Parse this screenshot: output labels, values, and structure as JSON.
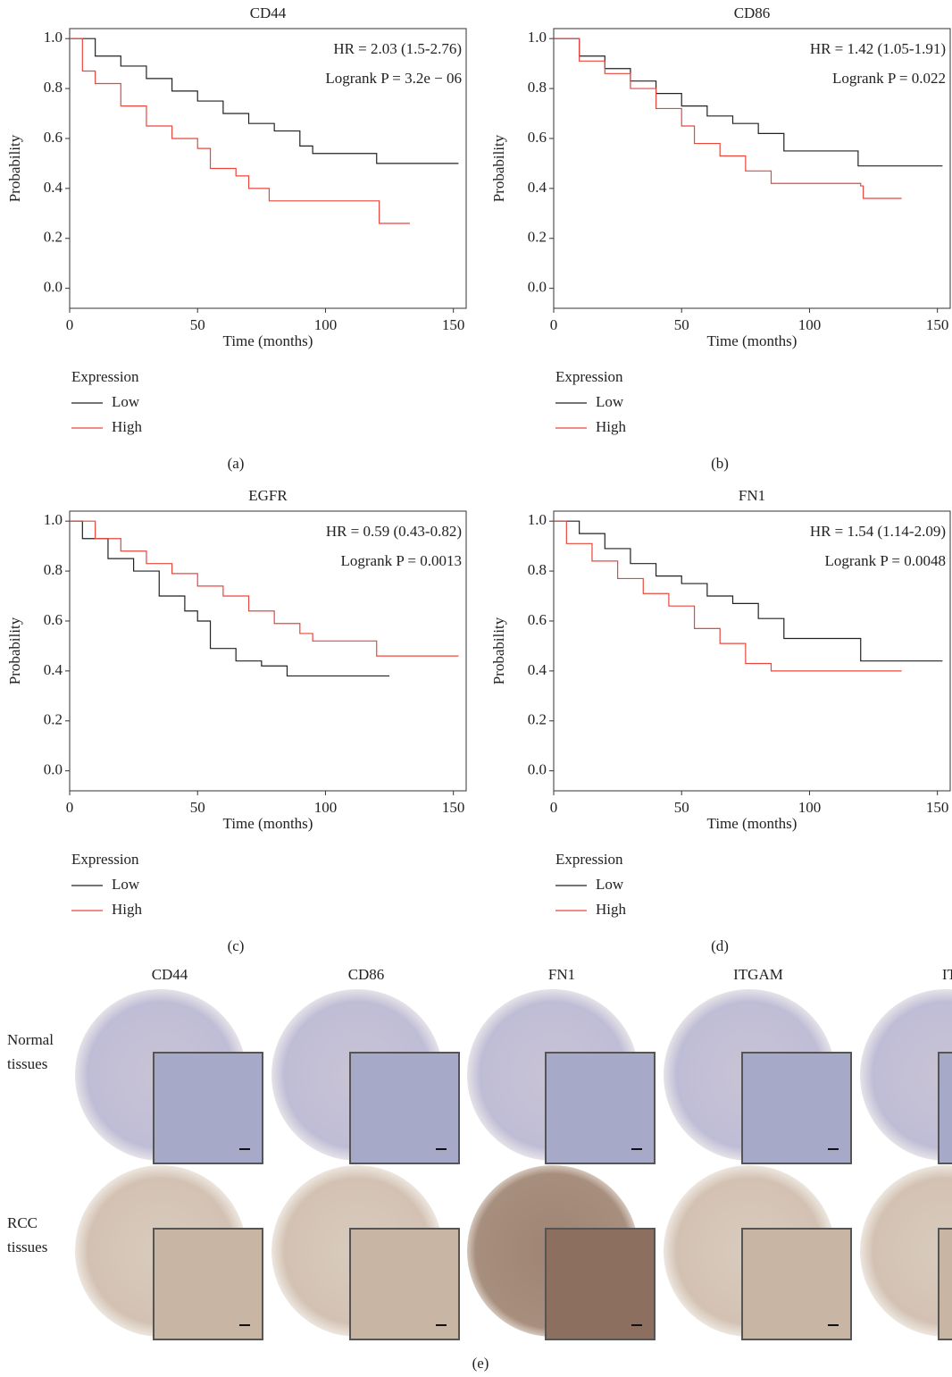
{
  "chart_data": [
    {
      "type": "line",
      "title": "CD44",
      "xlabel": "Time (months)",
      "ylabel": "Probability",
      "annotations": [
        "HR = 2.03 (1.5-2.76)",
        "Logrank P = 3.2e − 06"
      ],
      "legend_title": "Expression",
      "panel_label": "(a)",
      "xlim": [
        0,
        155
      ],
      "xticks": [
        0,
        50,
        100,
        150
      ],
      "ylim": [
        -0.08,
        1.04
      ],
      "yticks": [
        {
          "value": 0,
          "label": "0.0"
        },
        0.2,
        0.4,
        0.6,
        0.8,
        {
          "value": 1,
          "label": "1.0"
        }
      ],
      "series": [
        {
          "name": "Low",
          "color": "#222222",
          "x": [
            0,
            10,
            20,
            30,
            40,
            50,
            60,
            70,
            80,
            90,
            95,
            120,
            152
          ],
          "values": [
            1.0,
            0.93,
            0.89,
            0.84,
            0.79,
            0.75,
            0.7,
            0.66,
            0.63,
            0.57,
            0.54,
            0.5,
            0.5
          ]
        },
        {
          "name": "High",
          "color": "#e8473c",
          "x": [
            0,
            5,
            10,
            20,
            30,
            40,
            50,
            55,
            65,
            70,
            78,
            120,
            121,
            133
          ],
          "values": [
            1.0,
            0.87,
            0.82,
            0.73,
            0.65,
            0.6,
            0.56,
            0.48,
            0.45,
            0.4,
            0.35,
            0.35,
            0.26,
            0.26
          ]
        }
      ]
    },
    {
      "type": "line",
      "title": "CD86",
      "xlabel": "Time (months)",
      "ylabel": "Probability",
      "annotations": [
        "HR = 1.42 (1.05-1.91)",
        "Logrank P = 0.022"
      ],
      "legend_title": "Expression",
      "panel_label": "(b)",
      "xlim": [
        0,
        155
      ],
      "xticks": [
        0,
        50,
        100,
        150
      ],
      "ylim": [
        -0.08,
        1.04
      ],
      "yticks": [
        {
          "value": 0,
          "label": "0.0"
        },
        0.2,
        0.4,
        0.6,
        0.8,
        {
          "value": 1,
          "label": "1.0"
        }
      ],
      "series": [
        {
          "name": "Low",
          "color": "#222222",
          "x": [
            0,
            10,
            20,
            30,
            40,
            50,
            60,
            70,
            80,
            90,
            118,
            119,
            152
          ],
          "values": [
            1.0,
            0.93,
            0.88,
            0.83,
            0.78,
            0.73,
            0.69,
            0.66,
            0.62,
            0.55,
            0.55,
            0.49,
            0.49
          ]
        },
        {
          "name": "High",
          "color": "#e8473c",
          "x": [
            0,
            10,
            20,
            30,
            40,
            50,
            55,
            65,
            75,
            85,
            120,
            121,
            136
          ],
          "values": [
            1.0,
            0.91,
            0.86,
            0.8,
            0.72,
            0.65,
            0.58,
            0.53,
            0.47,
            0.42,
            0.41,
            0.36,
            0.36
          ]
        }
      ]
    },
    {
      "type": "line",
      "title": "EGFR",
      "xlabel": "Time (months)",
      "ylabel": "Probability",
      "annotations": [
        "HR = 0.59 (0.43-0.82)",
        "Logrank P = 0.0013"
      ],
      "legend_title": "Expression",
      "panel_label": "(c)",
      "xlim": [
        0,
        155
      ],
      "xticks": [
        0,
        50,
        100,
        150
      ],
      "ylim": [
        -0.08,
        1.04
      ],
      "yticks": [
        {
          "value": 0,
          "label": "0.0"
        },
        0.2,
        0.4,
        0.6,
        0.8,
        {
          "value": 1,
          "label": "1.0"
        }
      ],
      "series": [
        {
          "name": "Low",
          "color": "#222222",
          "x": [
            0,
            5,
            15,
            25,
            35,
            45,
            50,
            55,
            65,
            75,
            85,
            125
          ],
          "values": [
            1.0,
            0.93,
            0.85,
            0.8,
            0.7,
            0.64,
            0.6,
            0.49,
            0.44,
            0.42,
            0.38,
            0.38
          ]
        },
        {
          "name": "High",
          "color": "#e8473c",
          "x": [
            0,
            10,
            20,
            30,
            40,
            50,
            60,
            70,
            80,
            90,
            95,
            118,
            120,
            152
          ],
          "values": [
            1.0,
            0.93,
            0.88,
            0.83,
            0.79,
            0.74,
            0.7,
            0.64,
            0.59,
            0.55,
            0.52,
            0.52,
            0.46,
            0.46
          ]
        }
      ]
    },
    {
      "type": "line",
      "title": "FN1",
      "xlabel": "Time (months)",
      "ylabel": "Probability",
      "annotations": [
        "HR = 1.54 (1.14-2.09)",
        "Logrank P = 0.0048"
      ],
      "legend_title": "Expression",
      "panel_label": "(d)",
      "xlim": [
        0,
        155
      ],
      "xticks": [
        0,
        50,
        100,
        150
      ],
      "ylim": [
        -0.08,
        1.04
      ],
      "yticks": [
        {
          "value": 0,
          "label": "0.0"
        },
        0.2,
        0.4,
        0.6,
        0.8,
        {
          "value": 1,
          "label": "1.0"
        }
      ],
      "series": [
        {
          "name": "Low",
          "color": "#222222",
          "x": [
            0,
            10,
            20,
            30,
            40,
            50,
            60,
            70,
            80,
            90,
            118,
            120,
            152
          ],
          "values": [
            1.0,
            0.95,
            0.89,
            0.83,
            0.78,
            0.75,
            0.7,
            0.67,
            0.61,
            0.53,
            0.53,
            0.44,
            0.44
          ]
        },
        {
          "name": "High",
          "color": "#e8473c",
          "x": [
            0,
            5,
            15,
            25,
            35,
            45,
            55,
            65,
            75,
            85,
            136
          ],
          "values": [
            1.0,
            0.91,
            0.84,
            0.77,
            0.71,
            0.66,
            0.57,
            0.51,
            0.43,
            0.4,
            0.4
          ]
        }
      ]
    }
  ],
  "tissue_panel": {
    "columns": [
      "CD44",
      "CD86",
      "FN1",
      "ITGAM",
      "ITG"
    ],
    "rows": [
      [
        "Normal",
        "tissues"
      ],
      [
        "RCC",
        "tissues"
      ]
    ],
    "panel_label": "(e)"
  }
}
